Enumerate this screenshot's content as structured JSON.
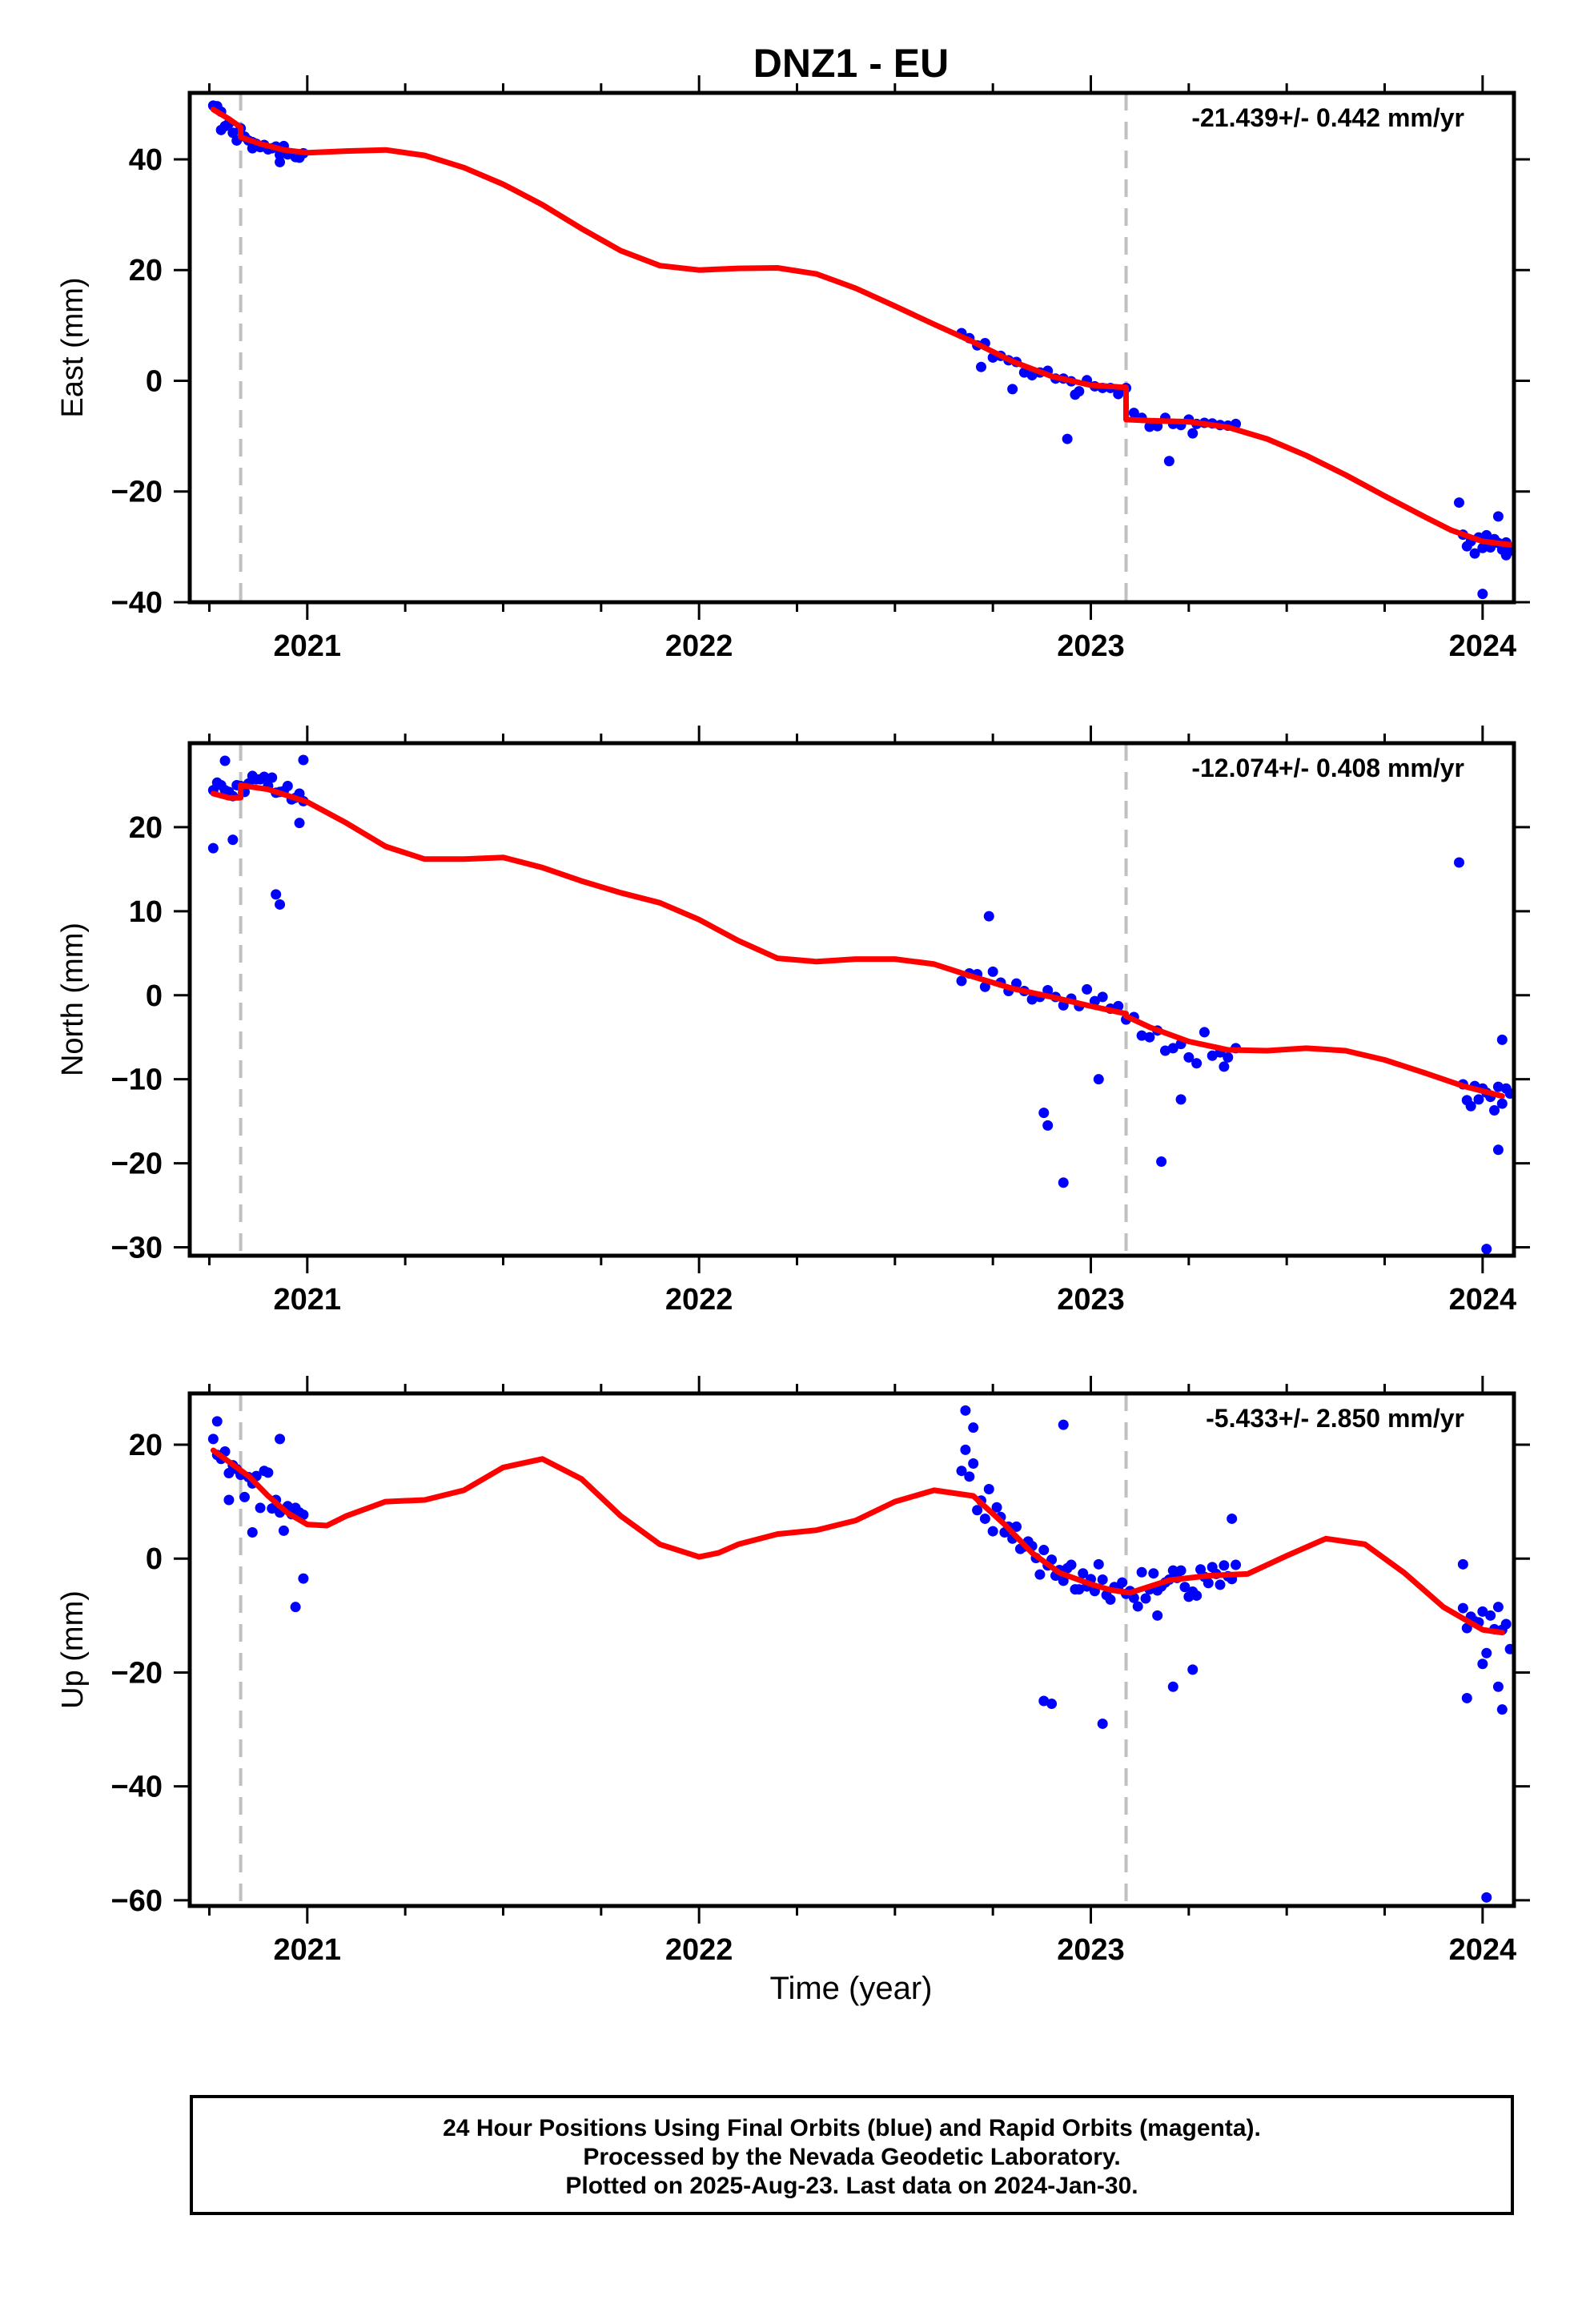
{
  "title": "DNZ1 - EU",
  "xlabel": "Time (year)",
  "footer": {
    "line1": "24 Hour Positions Using Final Orbits (blue) and Rapid Orbits (magenta).",
    "line2": "Processed by the Nevada Geodetic Laboratory.",
    "line3": "Plotted on 2025-Aug-23. Last data on 2024-Jan-30."
  },
  "colors": {
    "points": "#0000ff",
    "model": "#ff0000",
    "event_lines": "#c0c0c0",
    "frame": "#000000"
  },
  "chart_data": [
    {
      "type": "scatter",
      "ylabel": "East (mm)",
      "rate": "-21.439+/- 0.442 mm/yr",
      "xlim": [
        2020.7,
        2024.08
      ],
      "ylim": [
        -40,
        52
      ],
      "x_ticks": [
        2021,
        2022,
        2023,
        2024
      ],
      "y_ticks": [
        -40,
        -20,
        0,
        20,
        40
      ],
      "event_lines": [
        2020.83,
        2023.09
      ],
      "model": {
        "x": [
          2020.76,
          2020.8,
          2020.83,
          2020.83,
          2020.88,
          2020.94,
          2021.0,
          2021.1,
          2021.2,
          2021.3,
          2021.4,
          2021.5,
          2021.6,
          2021.7,
          2021.8,
          2021.9,
          2022.0,
          2022.1,
          2022.2,
          2022.3,
          2022.4,
          2022.5,
          2022.6,
          2022.7,
          2022.8,
          2022.9,
          2023.0,
          2023.09,
          2023.09,
          2023.15,
          2023.25,
          2023.35,
          2023.45,
          2023.55,
          2023.65,
          2023.75,
          2023.85,
          2023.92,
          2024.0,
          2024.08
        ],
        "y": [
          49.0,
          47.3,
          45.8,
          44.0,
          42.8,
          41.7,
          41.2,
          41.5,
          41.7,
          40.7,
          38.5,
          35.5,
          31.8,
          27.5,
          23.5,
          20.8,
          20.0,
          20.3,
          20.4,
          19.3,
          16.7,
          13.5,
          10.2,
          7.0,
          3.5,
          0.8,
          -0.8,
          -1.2,
          -7.0,
          -7.2,
          -7.4,
          -8.4,
          -10.5,
          -13.5,
          -17.0,
          -20.8,
          -24.5,
          -27.0,
          -29.0,
          -29.7
        ]
      },
      "points": {
        "x": [
          2020.76,
          2020.77,
          2020.78,
          2020.79,
          2020.8,
          2020.81,
          2020.82,
          2020.83,
          2020.84,
          2020.85,
          2020.86,
          2020.87,
          2020.88,
          2020.89,
          2020.9,
          2020.91,
          2020.92,
          2020.93,
          2020.94,
          2020.95,
          2020.96,
          2020.97,
          2020.98,
          2020.99,
          2020.78,
          2020.86,
          2020.93,
          2022.67,
          2022.69,
          2022.71,
          2022.73,
          2022.75,
          2022.77,
          2022.79,
          2022.81,
          2022.83,
          2022.85,
          2022.87,
          2022.89,
          2022.91,
          2022.93,
          2022.95,
          2022.97,
          2022.99,
          2023.01,
          2023.03,
          2023.05,
          2023.07,
          2023.09,
          2022.72,
          2022.8,
          2022.94,
          2022.96,
          2023.11,
          2023.13,
          2023.15,
          2023.17,
          2023.19,
          2023.21,
          2023.23,
          2023.25,
          2023.27,
          2023.29,
          2023.31,
          2023.33,
          2023.35,
          2023.37,
          2023.2,
          2023.26,
          2023.95,
          2023.96,
          2023.97,
          2023.98,
          2023.99,
          2024.0,
          2024.01,
          2024.02,
          2024.03,
          2024.04,
          2024.05,
          2024.06,
          2024.07,
          2023.94,
          2024.0,
          2024.04,
          2024.06
        ],
        "y": [
          49.7,
          49.6,
          48.6,
          46.0,
          46.5,
          44.8,
          43.4,
          45.6,
          44.1,
          43.4,
          43.1,
          42.8,
          42.2,
          42.6,
          41.8,
          42.0,
          42.3,
          40.8,
          42.4,
          40.9,
          41.0,
          40.4,
          40.3,
          41.1,
          45.3,
          42.0,
          39.5,
          8.6,
          7.7,
          6.4,
          6.8,
          4.2,
          4.5,
          3.7,
          3.4,
          1.5,
          1.0,
          1.5,
          1.8,
          0.4,
          0.4,
          -0.1,
          -1.9,
          0.1,
          -1.0,
          -1.3,
          -1.3,
          -2.4,
          -1.3,
          2.5,
          -1.5,
          -10.5,
          -2.5,
          -5.8,
          -6.7,
          -8.3,
          -8.2,
          -6.7,
          -7.8,
          -8.0,
          -7.0,
          -7.8,
          -7.6,
          -7.7,
          -8.0,
          -8.1,
          -7.8,
          -14.5,
          -9.5,
          -27.8,
          -29.9,
          -29.0,
          -31.2,
          -28.3,
          -30.2,
          -27.9,
          -30.1,
          -28.6,
          -29.3,
          -30.5,
          -29.2,
          -30.7,
          -22.0,
          -38.5,
          -24.5,
          -31.5
        ]
      }
    },
    {
      "type": "scatter",
      "ylabel": "North (mm)",
      "rate": "-12.074+/- 0.408 mm/yr",
      "xlim": [
        2020.7,
        2024.08
      ],
      "ylim": [
        -31,
        30
      ],
      "x_ticks": [
        2021,
        2022,
        2023,
        2024
      ],
      "y_ticks": [
        -30,
        -20,
        -10,
        0,
        10,
        20
      ],
      "event_lines": [
        2020.83,
        2023.09
      ],
      "model": {
        "x": [
          2020.76,
          2020.8,
          2020.83,
          2020.83,
          2020.9,
          2021.0,
          2021.1,
          2021.2,
          2021.3,
          2021.4,
          2021.5,
          2021.6,
          2021.7,
          2021.8,
          2021.9,
          2022.0,
          2022.1,
          2022.2,
          2022.3,
          2022.4,
          2022.5,
          2022.6,
          2022.7,
          2022.8,
          2022.9,
          2023.0,
          2023.09,
          2023.09,
          2023.15,
          2023.25,
          2023.35,
          2023.45,
          2023.55,
          2023.65,
          2023.75,
          2023.85,
          2023.95,
          2024.05
        ],
        "y": [
          24.0,
          23.5,
          23.5,
          25.0,
          24.5,
          23.0,
          20.5,
          17.7,
          16.2,
          16.2,
          16.4,
          15.2,
          13.6,
          12.2,
          11.0,
          9.0,
          6.5,
          4.4,
          4.0,
          4.3,
          4.3,
          3.7,
          2.2,
          0.8,
          -0.2,
          -1.3,
          -2.2,
          -2.5,
          -3.8,
          -5.5,
          -6.5,
          -6.6,
          -6.3,
          -6.6,
          -7.7,
          -9.2,
          -10.8,
          -12.0
        ]
      },
      "points": {
        "x": [
          2020.76,
          2020.77,
          2020.78,
          2020.79,
          2020.8,
          2020.81,
          2020.82,
          2020.83,
          2020.84,
          2020.85,
          2020.86,
          2020.87,
          2020.88,
          2020.89,
          2020.9,
          2020.91,
          2020.92,
          2020.93,
          2020.94,
          2020.95,
          2020.96,
          2020.97,
          2020.98,
          2020.99,
          2020.76,
          2020.79,
          2020.81,
          2020.92,
          2020.93,
          2020.98,
          2020.99,
          2022.67,
          2022.69,
          2022.71,
          2022.73,
          2022.75,
          2022.77,
          2022.79,
          2022.81,
          2022.83,
          2022.85,
          2022.87,
          2022.89,
          2022.91,
          2022.93,
          2022.95,
          2022.97,
          2022.99,
          2023.01,
          2023.03,
          2023.05,
          2023.07,
          2023.09,
          2022.74,
          2022.88,
          2022.89,
          2022.93,
          2023.02,
          2023.11,
          2023.13,
          2023.15,
          2023.17,
          2023.19,
          2023.21,
          2023.23,
          2023.25,
          2023.27,
          2023.29,
          2023.31,
          2023.33,
          2023.35,
          2023.37,
          2023.18,
          2023.23,
          2023.34,
          2023.95,
          2023.96,
          2023.97,
          2023.98,
          2023.99,
          2024.0,
          2024.01,
          2024.02,
          2024.03,
          2024.04,
          2024.05,
          2024.06,
          2024.07,
          2023.94,
          2024.01,
          2024.04,
          2024.05
        ],
        "y": [
          24.4,
          25.3,
          25.0,
          24.4,
          24.2,
          23.7,
          25.0,
          24.9,
          24.2,
          25.2,
          26.1,
          25.7,
          25.7,
          26.0,
          24.9,
          25.9,
          24.1,
          24.2,
          24.3,
          24.9,
          23.3,
          23.5,
          24.0,
          23.1,
          17.5,
          27.9,
          18.5,
          12.0,
          10.8,
          20.5,
          28.0,
          1.7,
          2.6,
          2.5,
          1.0,
          2.8,
          1.5,
          0.5,
          1.4,
          0.5,
          -0.5,
          -0.2,
          0.6,
          -0.2,
          -1.2,
          -0.4,
          -1.3,
          0.7,
          -0.7,
          -0.2,
          -1.6,
          -1.3,
          -2.9,
          9.4,
          -14.0,
          -15.5,
          -22.3,
          -10.0,
          -2.6,
          -4.8,
          -5.0,
          -4.2,
          -6.6,
          -6.3,
          -5.8,
          -7.4,
          -8.1,
          -4.4,
          -7.2,
          -6.8,
          -7.4,
          -6.3,
          -19.8,
          -12.4,
          -8.5,
          -10.6,
          -12.5,
          -13.2,
          -10.8,
          -12.4,
          -11.1,
          -11.6,
          -12.1,
          -13.7,
          -10.9,
          -12.9,
          -11.1,
          -11.7,
          15.8,
          -30.2,
          -18.4,
          -5.3
        ]
      }
    },
    {
      "type": "scatter",
      "ylabel": "Up (mm)",
      "rate": "-5.433+/- 2.850 mm/yr",
      "xlim": [
        2020.7,
        2024.08
      ],
      "ylim": [
        -61,
        29
      ],
      "x_ticks": [
        2021,
        2022,
        2023,
        2024
      ],
      "y_ticks": [
        -60,
        -40,
        -20,
        0,
        20
      ],
      "event_lines": [
        2020.83,
        2023.09
      ],
      "model": {
        "x": [
          2020.76,
          2020.8,
          2020.85,
          2020.9,
          2020.95,
          2021.0,
          2021.05,
          2021.1,
          2021.2,
          2021.3,
          2021.4,
          2021.5,
          2021.6,
          2021.7,
          2021.8,
          2021.9,
          2022.0,
          2022.05,
          2022.1,
          2022.2,
          2022.3,
          2022.4,
          2022.5,
          2022.6,
          2022.7,
          2022.78,
          2022.85,
          2022.92,
          2023.0,
          2023.05,
          2023.1,
          2023.2,
          2023.3,
          2023.4,
          2023.5,
          2023.6,
          2023.7,
          2023.8,
          2023.9,
          2024.0,
          2024.05
        ],
        "y": [
          19.0,
          17.0,
          14.5,
          11.0,
          8.0,
          6.0,
          5.8,
          7.5,
          10.0,
          10.3,
          12.0,
          16.0,
          17.5,
          14.0,
          7.5,
          2.5,
          0.3,
          1.0,
          2.5,
          4.3,
          5.0,
          6.7,
          10.0,
          12.0,
          11.0,
          6.0,
          1.0,
          -2.5,
          -4.5,
          -5.5,
          -6.0,
          -3.8,
          -3.0,
          -2.7,
          0.5,
          3.5,
          2.5,
          -2.5,
          -8.5,
          -12.5,
          -13.0
        ]
      },
      "points": {
        "x": [
          2020.76,
          2020.77,
          2020.78,
          2020.79,
          2020.8,
          2020.81,
          2020.82,
          2020.83,
          2020.84,
          2020.85,
          2020.86,
          2020.87,
          2020.88,
          2020.89,
          2020.9,
          2020.91,
          2020.92,
          2020.93,
          2020.94,
          2020.95,
          2020.96,
          2020.97,
          2020.98,
          2020.99,
          2020.77,
          2020.8,
          2020.86,
          2020.93,
          2020.97,
          2020.99,
          2022.67,
          2022.68,
          2022.69,
          2022.7,
          2022.71,
          2022.72,
          2022.73,
          2022.74,
          2022.75,
          2022.76,
          2022.77,
          2022.78,
          2022.79,
          2022.8,
          2022.81,
          2022.82,
          2022.83,
          2022.84,
          2022.85,
          2022.86,
          2022.87,
          2022.88,
          2022.89,
          2022.9,
          2022.91,
          2022.92,
          2022.93,
          2022.94,
          2022.95,
          2022.96,
          2022.97,
          2022.98,
          2022.99,
          2023.0,
          2023.01,
          2023.02,
          2023.03,
          2023.04,
          2023.05,
          2023.06,
          2023.07,
          2023.08,
          2023.09,
          2023.1,
          2023.11,
          2023.12,
          2023.13,
          2023.14,
          2023.15,
          2023.16,
          2023.17,
          2023.18,
          2023.19,
          2023.2,
          2023.21,
          2023.22,
          2023.23,
          2023.24,
          2023.25,
          2023.26,
          2023.27,
          2023.28,
          2023.29,
          2023.3,
          2023.31,
          2023.32,
          2023.33,
          2023.34,
          2023.35,
          2023.36,
          2023.37,
          2022.68,
          2022.7,
          2022.88,
          2022.9,
          2022.93,
          2023.03,
          2023.21,
          2023.26,
          2023.17,
          2023.36,
          2023.95,
          2023.96,
          2023.97,
          2023.98,
          2023.99,
          2024.0,
          2024.01,
          2024.02,
          2024.03,
          2024.04,
          2024.05,
          2024.06,
          2024.07,
          2023.95,
          2023.96,
          2024.0,
          2024.01,
          2024.04,
          2024.05
        ],
        "y": [
          21.0,
          18.2,
          17.5,
          18.8,
          15.0,
          16.4,
          15.7,
          14.7,
          10.8,
          14.3,
          13.2,
          14.5,
          8.9,
          15.4,
          15.1,
          8.8,
          10.3,
          8.1,
          4.9,
          9.2,
          7.8,
          8.9,
          8.1,
          7.7,
          24.1,
          10.3,
          4.6,
          21.0,
          -8.5,
          -3.5,
          15.4,
          19.1,
          14.4,
          16.7,
          8.5,
          10.2,
          7.0,
          12.2,
          4.8,
          9.0,
          7.3,
          4.6,
          5.6,
          3.5,
          5.6,
          1.7,
          2.1,
          3.0,
          2.2,
          0.1,
          -2.8,
          1.5,
          -1.2,
          -0.2,
          -3.0,
          -2.0,
          -3.9,
          -1.7,
          -1.1,
          -5.4,
          -5.4,
          -2.6,
          -4.9,
          -3.6,
          -5.7,
          -1.0,
          -3.7,
          -6.4,
          -7.2,
          -5.0,
          -5.3,
          -4.2,
          -6.2,
          -5.7,
          -6.9,
          -8.4,
          -2.4,
          -7.0,
          -5.4,
          -2.6,
          -5.6,
          -4.9,
          -4.2,
          -3.7,
          -2.1,
          -3.4,
          -2.1,
          -5.0,
          -6.7,
          -5.8,
          -6.5,
          -1.9,
          -3.2,
          -4.3,
          -1.5,
          -2.7,
          -4.6,
          -1.2,
          -3.1,
          -3.6,
          -1.1,
          26.0,
          23.0,
          -25.0,
          -25.5,
          23.5,
          -29.0,
          -22.5,
          -19.5,
          -10.0,
          7.0,
          -8.7,
          -12.2,
          -10.2,
          -11.0,
          -11.2,
          -9.3,
          -16.6,
          -10.0,
          -12.4,
          -8.5,
          -12.5,
          -11.5,
          -15.9,
          -1.0,
          -24.5,
          -18.5,
          -59.5,
          -22.5,
          -26.5
        ]
      }
    }
  ]
}
